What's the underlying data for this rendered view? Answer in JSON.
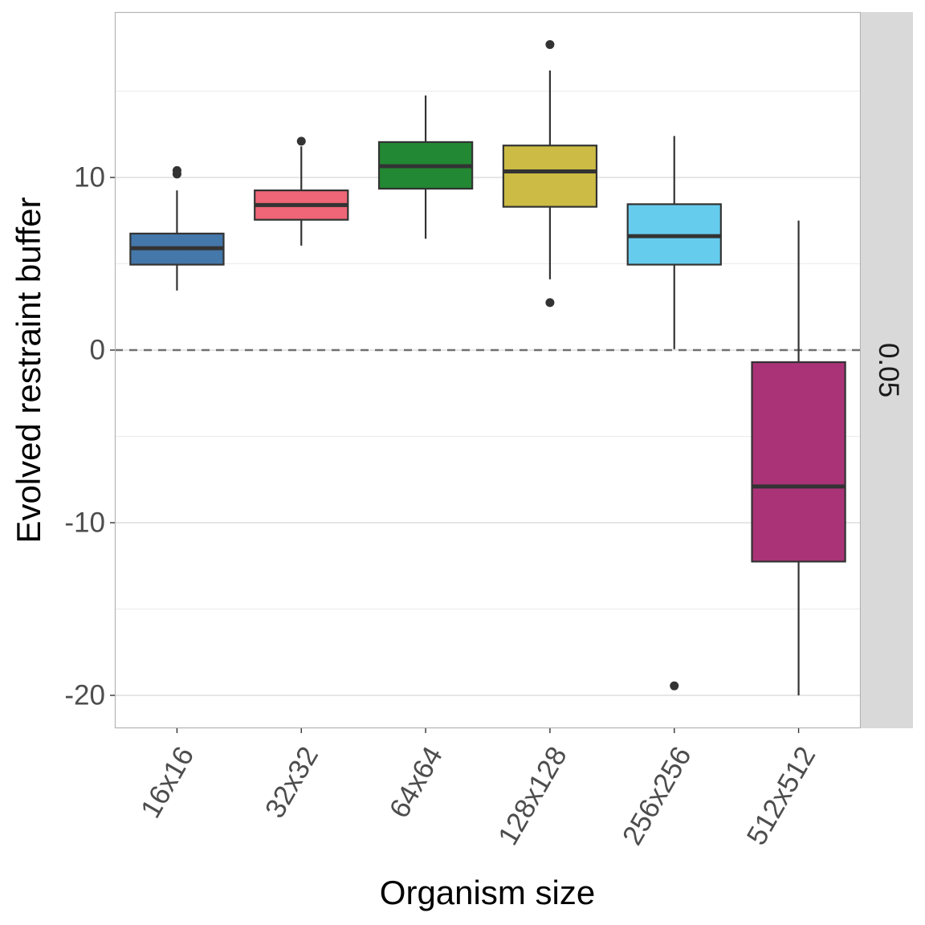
{
  "chart_data": {
    "type": "boxplot",
    "title": "",
    "xlabel": "Organism size",
    "ylabel": "Evolved restraint buffer",
    "facet_label": "0.05",
    "ylim": [
      -22,
      19.5
    ],
    "yticks": [
      -20,
      -10,
      0,
      10
    ],
    "ytick_labels": [
      "-20",
      "-10",
      "0",
      "10"
    ],
    "minor_gridlines": [
      -15,
      -5,
      5,
      15
    ],
    "reference_line": {
      "y": 0,
      "style": "dashed",
      "color": "#707070"
    },
    "grid": true,
    "legend": "none",
    "categories": [
      "16x16",
      "32x32",
      "64x64",
      "128x128",
      "256x256",
      "512x512"
    ],
    "series": [
      {
        "name": "16x16",
        "color": "#4477aa",
        "whisker_low": 3.45,
        "q1": 4.95,
        "median": 5.9,
        "q3": 6.75,
        "whisker_high": 9.25,
        "outliers": [
          10.2,
          10.4
        ]
      },
      {
        "name": "32x32",
        "color": "#ee6677",
        "whisker_low": 6.05,
        "q1": 7.55,
        "median": 8.4,
        "q3": 9.25,
        "whisker_high": 11.8,
        "outliers": [
          12.1
        ]
      },
      {
        "name": "64x64",
        "color": "#228833",
        "whisker_low": 6.45,
        "q1": 9.35,
        "median": 10.65,
        "q3": 12.05,
        "whisker_high": 14.75,
        "outliers": []
      },
      {
        "name": "128x128",
        "color": "#ccbb44",
        "whisker_low": 4.1,
        "q1": 8.3,
        "median": 10.35,
        "q3": 11.85,
        "whisker_high": 16.2,
        "outliers": [
          17.7,
          2.75
        ]
      },
      {
        "name": "256x256",
        "color": "#66ccee",
        "whisker_low": 0.05,
        "q1": 4.95,
        "median": 6.6,
        "q3": 8.45,
        "whisker_high": 12.4,
        "outliers": [
          -19.45
        ]
      },
      {
        "name": "512x512",
        "color": "#aa3377",
        "whisker_low": -20.0,
        "q1": -12.25,
        "median": -7.9,
        "q3": -0.7,
        "whisker_high": 7.5,
        "outliers": []
      }
    ]
  }
}
